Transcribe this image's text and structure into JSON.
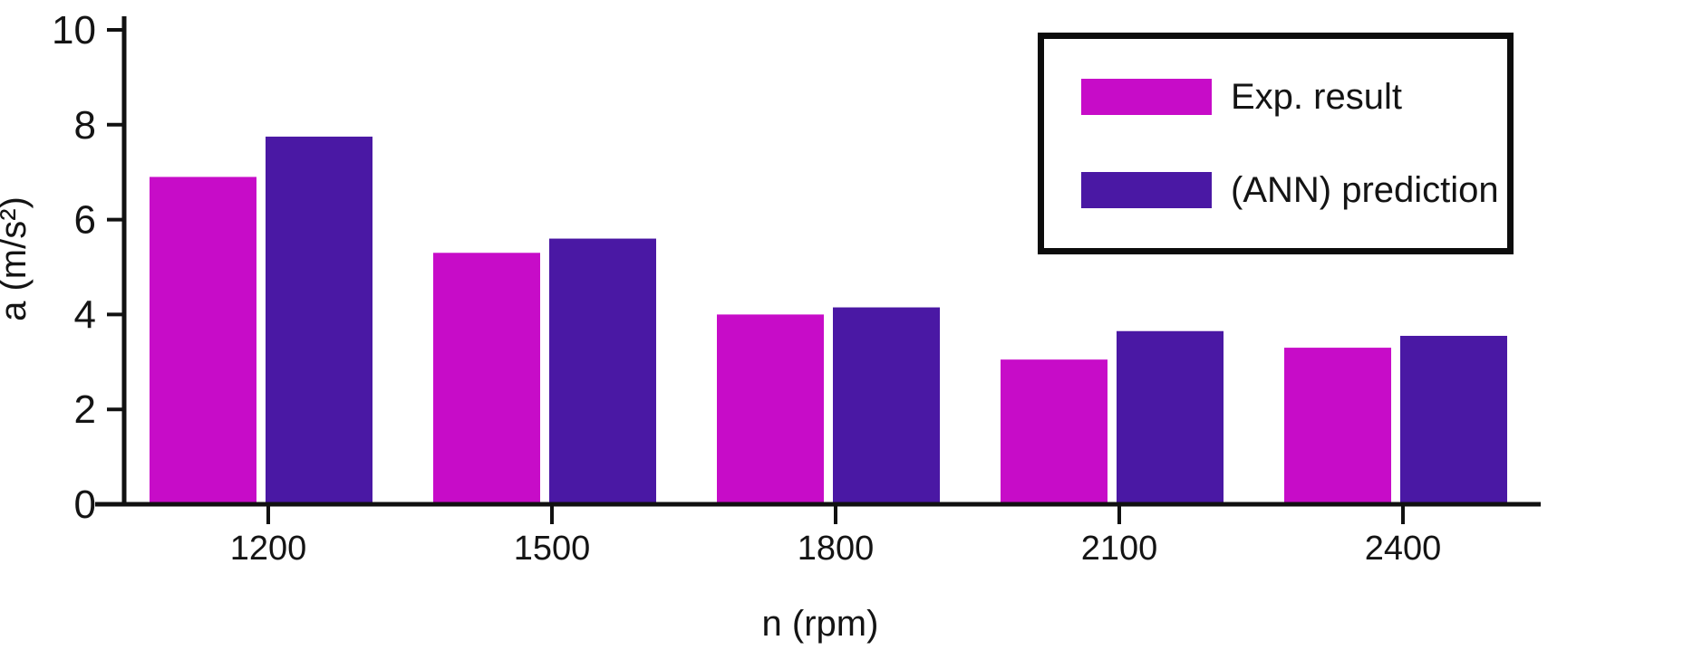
{
  "chart_data": {
    "type": "bar",
    "title": "",
    "xlabel": "n (rpm)",
    "ylabel": "a (m/s²)",
    "ylim": [
      0,
      10
    ],
    "y_ticks": [
      0,
      2,
      4,
      6,
      8,
      10
    ],
    "categories": [
      "1200",
      "1500",
      "1800",
      "2100",
      "2400"
    ],
    "series": [
      {
        "name": "Exp. result",
        "color": "#C70CC8",
        "values": [
          6.9,
          5.3,
          4.0,
          3.05,
          3.3
        ]
      },
      {
        "name": "(ANN) prediction",
        "color": "#4A18A4",
        "values": [
          7.75,
          5.6,
          4.15,
          3.65,
          3.55
        ]
      }
    ],
    "grid": false,
    "legend_position": "top-right",
    "axis_color": "#111111",
    "background": "#ffffff"
  }
}
